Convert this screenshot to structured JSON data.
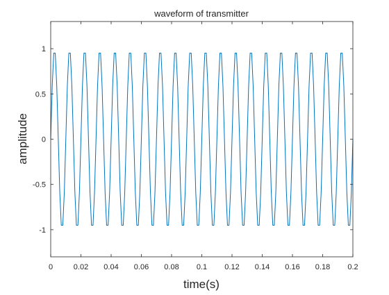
{
  "chart_data": {
    "type": "line",
    "title": "waveform of transmitter",
    "xlabel": "time(s)",
    "ylabel": "amplitude",
    "xlim": [
      0,
      0.2
    ],
    "ylim": [
      -1.3,
      1.3
    ],
    "xticks": [
      0,
      0.02,
      0.04,
      0.06,
      0.08,
      0.1,
      0.12,
      0.14,
      0.16,
      0.18,
      0.2
    ],
    "xtick_labels": [
      "0",
      "0.02",
      "0.04",
      "0.06",
      "0.08",
      "0.1",
      "0.12",
      "0.14",
      "0.16",
      "0.18",
      "0.2"
    ],
    "yticks": [
      1,
      0.5,
      0,
      -0.5,
      -1
    ],
    "ytick_labels": [
      "1",
      "0.5",
      "0",
      "-0.5",
      "-1"
    ],
    "grid": false,
    "legend": "none",
    "line_color": "#0072BD",
    "series": [
      {
        "signal": "sine",
        "amplitude": 1,
        "frequency_hz": 100,
        "sample_interval_s": 0.001,
        "x_start": 0,
        "x_end": 0.2
      }
    ]
  }
}
